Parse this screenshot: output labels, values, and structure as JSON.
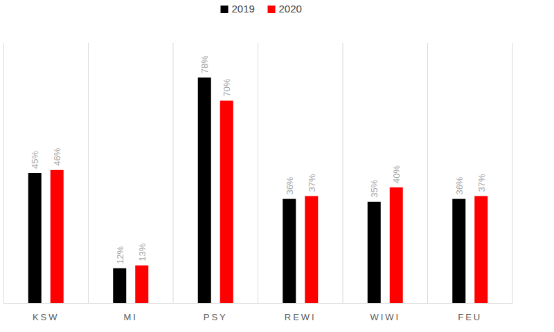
{
  "chart_data": {
    "type": "bar",
    "categories": [
      "KSW",
      "MI",
      "PSY",
      "REWI",
      "WIWI",
      "FEU"
    ],
    "series": [
      {
        "name": "2019",
        "color": "#000000",
        "values": [
          45,
          12,
          78,
          36,
          35,
          36
        ],
        "value_labels": [
          "45%",
          "12%",
          "78%",
          "36%",
          "35%",
          "36%"
        ]
      },
      {
        "name": "2020",
        "color": "#ff0000",
        "values": [
          46,
          13,
          70,
          37,
          40,
          37
        ],
        "value_labels": [
          "46%",
          "13%",
          "70%",
          "37%",
          "40%",
          "37%"
        ]
      }
    ],
    "ylim": [
      0,
      90
    ],
    "legend": "top",
    "data_labels": true,
    "tick_labels": "x"
  }
}
